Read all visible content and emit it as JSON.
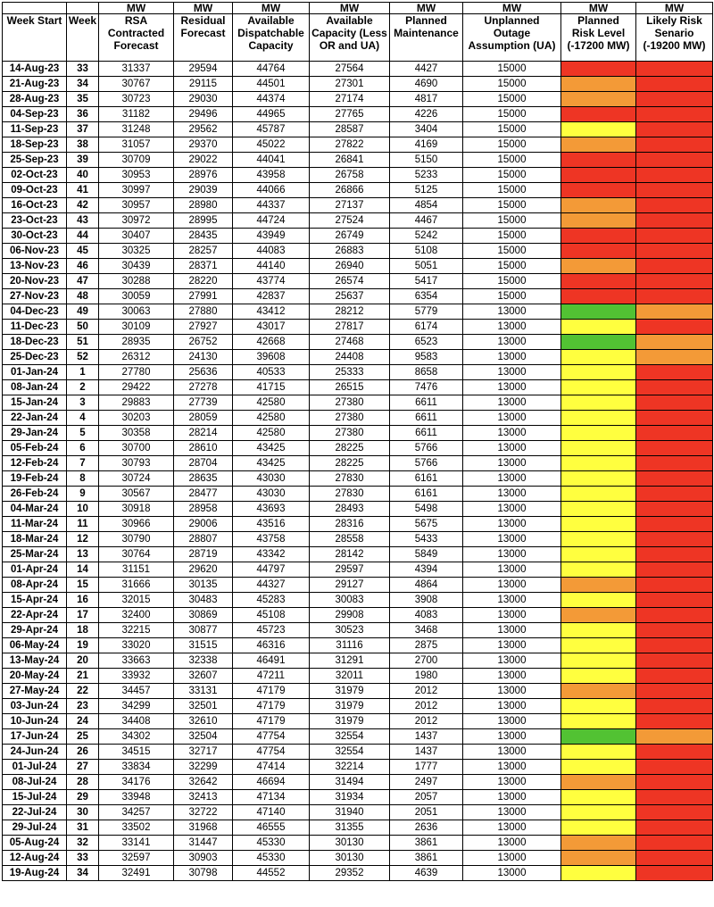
{
  "header": {
    "units": [
      "",
      "",
      "MW",
      "MW",
      "MW",
      "MW",
      "MW",
      "MW",
      "MW",
      "MW"
    ],
    "labels": [
      "Week Start",
      "Week",
      "RSA\nContracted\nForecast",
      "Residual\nForecast",
      "Available\nDispatchable\nCapacity",
      "Available\nCapacity (Less\nOR and UA)",
      "Planned\nMaintenance",
      "Unplanned\nOutage\nAssumption (UA)",
      "Planned\nRisk Level\n(-17200 MW)",
      "Likely Risk\nSenario\n(-19200 MW)"
    ]
  },
  "colors": {
    "red": "#ee3524",
    "orange": "#f39a37",
    "yellow": "#ffff3f",
    "green": "#52c233"
  },
  "rows": [
    {
      "week_start": "14-Aug-23",
      "week": "33",
      "rsa": "31337",
      "residual": "29594",
      "avail_disp": "44764",
      "avail_cap": "27564",
      "maint": "4427",
      "ua": "15000",
      "planned_risk": "red",
      "likely_risk": "red"
    },
    {
      "week_start": "21-Aug-23",
      "week": "34",
      "rsa": "30767",
      "residual": "29115",
      "avail_disp": "44501",
      "avail_cap": "27301",
      "maint": "4690",
      "ua": "15000",
      "planned_risk": "orange",
      "likely_risk": "red"
    },
    {
      "week_start": "28-Aug-23",
      "week": "35",
      "rsa": "30723",
      "residual": "29030",
      "avail_disp": "44374",
      "avail_cap": "27174",
      "maint": "4817",
      "ua": "15000",
      "planned_risk": "orange",
      "likely_risk": "red"
    },
    {
      "week_start": "04-Sep-23",
      "week": "36",
      "rsa": "31182",
      "residual": "29496",
      "avail_disp": "44965",
      "avail_cap": "27765",
      "maint": "4226",
      "ua": "15000",
      "planned_risk": "red",
      "likely_risk": "red"
    },
    {
      "week_start": "11-Sep-23",
      "week": "37",
      "rsa": "31248",
      "residual": "29562",
      "avail_disp": "45787",
      "avail_cap": "28587",
      "maint": "3404",
      "ua": "15000",
      "planned_risk": "yellow",
      "likely_risk": "red"
    },
    {
      "week_start": "18-Sep-23",
      "week": "38",
      "rsa": "31057",
      "residual": "29370",
      "avail_disp": "45022",
      "avail_cap": "27822",
      "maint": "4169",
      "ua": "15000",
      "planned_risk": "orange",
      "likely_risk": "red"
    },
    {
      "week_start": "25-Sep-23",
      "week": "39",
      "rsa": "30709",
      "residual": "29022",
      "avail_disp": "44041",
      "avail_cap": "26841",
      "maint": "5150",
      "ua": "15000",
      "planned_risk": "red",
      "likely_risk": "red"
    },
    {
      "week_start": "02-Oct-23",
      "week": "40",
      "rsa": "30953",
      "residual": "28976",
      "avail_disp": "43958",
      "avail_cap": "26758",
      "maint": "5233",
      "ua": "15000",
      "planned_risk": "red",
      "likely_risk": "red"
    },
    {
      "week_start": "09-Oct-23",
      "week": "41",
      "rsa": "30997",
      "residual": "29039",
      "avail_disp": "44066",
      "avail_cap": "26866",
      "maint": "5125",
      "ua": "15000",
      "planned_risk": "red",
      "likely_risk": "red"
    },
    {
      "week_start": "16-Oct-23",
      "week": "42",
      "rsa": "30957",
      "residual": "28980",
      "avail_disp": "44337",
      "avail_cap": "27137",
      "maint": "4854",
      "ua": "15000",
      "planned_risk": "orange",
      "likely_risk": "red"
    },
    {
      "week_start": "23-Oct-23",
      "week": "43",
      "rsa": "30972",
      "residual": "28995",
      "avail_disp": "44724",
      "avail_cap": "27524",
      "maint": "4467",
      "ua": "15000",
      "planned_risk": "orange",
      "likely_risk": "red"
    },
    {
      "week_start": "30-Oct-23",
      "week": "44",
      "rsa": "30407",
      "residual": "28435",
      "avail_disp": "43949",
      "avail_cap": "26749",
      "maint": "5242",
      "ua": "15000",
      "planned_risk": "red",
      "likely_risk": "red"
    },
    {
      "week_start": "06-Nov-23",
      "week": "45",
      "rsa": "30325",
      "residual": "28257",
      "avail_disp": "44083",
      "avail_cap": "26883",
      "maint": "5108",
      "ua": "15000",
      "planned_risk": "red",
      "likely_risk": "red"
    },
    {
      "week_start": "13-Nov-23",
      "week": "46",
      "rsa": "30439",
      "residual": "28371",
      "avail_disp": "44140",
      "avail_cap": "26940",
      "maint": "5051",
      "ua": "15000",
      "planned_risk": "orange",
      "likely_risk": "red"
    },
    {
      "week_start": "20-Nov-23",
      "week": "47",
      "rsa": "30288",
      "residual": "28220",
      "avail_disp": "43774",
      "avail_cap": "26574",
      "maint": "5417",
      "ua": "15000",
      "planned_risk": "red",
      "likely_risk": "red"
    },
    {
      "week_start": "27-Nov-23",
      "week": "48",
      "rsa": "30059",
      "residual": "27991",
      "avail_disp": "42837",
      "avail_cap": "25637",
      "maint": "6354",
      "ua": "15000",
      "planned_risk": "red",
      "likely_risk": "red"
    },
    {
      "week_start": "04-Dec-23",
      "week": "49",
      "rsa": "30063",
      "residual": "27880",
      "avail_disp": "43412",
      "avail_cap": "28212",
      "maint": "5779",
      "ua": "13000",
      "planned_risk": "green",
      "likely_risk": "orange"
    },
    {
      "week_start": "11-Dec-23",
      "week": "50",
      "rsa": "30109",
      "residual": "27927",
      "avail_disp": "43017",
      "avail_cap": "27817",
      "maint": "6174",
      "ua": "13000",
      "planned_risk": "yellow",
      "likely_risk": "red"
    },
    {
      "week_start": "18-Dec-23",
      "week": "51",
      "rsa": "28935",
      "residual": "26752",
      "avail_disp": "42668",
      "avail_cap": "27468",
      "maint": "6523",
      "ua": "13000",
      "planned_risk": "green",
      "likely_risk": "orange"
    },
    {
      "week_start": "25-Dec-23",
      "week": "52",
      "rsa": "26312",
      "residual": "24130",
      "avail_disp": "39608",
      "avail_cap": "24408",
      "maint": "9583",
      "ua": "13000",
      "planned_risk": "yellow",
      "likely_risk": "orange"
    },
    {
      "week_start": "01-Jan-24",
      "week": "1",
      "rsa": "27780",
      "residual": "25636",
      "avail_disp": "40533",
      "avail_cap": "25333",
      "maint": "8658",
      "ua": "13000",
      "planned_risk": "yellow",
      "likely_risk": "red"
    },
    {
      "week_start": "08-Jan-24",
      "week": "2",
      "rsa": "29422",
      "residual": "27278",
      "avail_disp": "41715",
      "avail_cap": "26515",
      "maint": "7476",
      "ua": "13000",
      "planned_risk": "yellow",
      "likely_risk": "red"
    },
    {
      "week_start": "15-Jan-24",
      "week": "3",
      "rsa": "29883",
      "residual": "27739",
      "avail_disp": "42580",
      "avail_cap": "27380",
      "maint": "6611",
      "ua": "13000",
      "planned_risk": "yellow",
      "likely_risk": "red"
    },
    {
      "week_start": "22-Jan-24",
      "week": "4",
      "rsa": "30203",
      "residual": "28059",
      "avail_disp": "42580",
      "avail_cap": "27380",
      "maint": "6611",
      "ua": "13000",
      "planned_risk": "yellow",
      "likely_risk": "red"
    },
    {
      "week_start": "29-Jan-24",
      "week": "5",
      "rsa": "30358",
      "residual": "28214",
      "avail_disp": "42580",
      "avail_cap": "27380",
      "maint": "6611",
      "ua": "13000",
      "planned_risk": "yellow",
      "likely_risk": "red"
    },
    {
      "week_start": "05-Feb-24",
      "week": "6",
      "rsa": "30700",
      "residual": "28610",
      "avail_disp": "43425",
      "avail_cap": "28225",
      "maint": "5766",
      "ua": "13000",
      "planned_risk": "yellow",
      "likely_risk": "red"
    },
    {
      "week_start": "12-Feb-24",
      "week": "7",
      "rsa": "30793",
      "residual": "28704",
      "avail_disp": "43425",
      "avail_cap": "28225",
      "maint": "5766",
      "ua": "13000",
      "planned_risk": "yellow",
      "likely_risk": "red"
    },
    {
      "week_start": "19-Feb-24",
      "week": "8",
      "rsa": "30724",
      "residual": "28635",
      "avail_disp": "43030",
      "avail_cap": "27830",
      "maint": "6161",
      "ua": "13000",
      "planned_risk": "yellow",
      "likely_risk": "red"
    },
    {
      "week_start": "26-Feb-24",
      "week": "9",
      "rsa": "30567",
      "residual": "28477",
      "avail_disp": "43030",
      "avail_cap": "27830",
      "maint": "6161",
      "ua": "13000",
      "planned_risk": "yellow",
      "likely_risk": "red"
    },
    {
      "week_start": "04-Mar-24",
      "week": "10",
      "rsa": "30918",
      "residual": "28958",
      "avail_disp": "43693",
      "avail_cap": "28493",
      "maint": "5498",
      "ua": "13000",
      "planned_risk": "yellow",
      "likely_risk": "red"
    },
    {
      "week_start": "11-Mar-24",
      "week": "11",
      "rsa": "30966",
      "residual": "29006",
      "avail_disp": "43516",
      "avail_cap": "28316",
      "maint": "5675",
      "ua": "13000",
      "planned_risk": "yellow",
      "likely_risk": "red"
    },
    {
      "week_start": "18-Mar-24",
      "week": "12",
      "rsa": "30790",
      "residual": "28807",
      "avail_disp": "43758",
      "avail_cap": "28558",
      "maint": "5433",
      "ua": "13000",
      "planned_risk": "yellow",
      "likely_risk": "red"
    },
    {
      "week_start": "25-Mar-24",
      "week": "13",
      "rsa": "30764",
      "residual": "28719",
      "avail_disp": "43342",
      "avail_cap": "28142",
      "maint": "5849",
      "ua": "13000",
      "planned_risk": "yellow",
      "likely_risk": "red"
    },
    {
      "week_start": "01-Apr-24",
      "week": "14",
      "rsa": "31151",
      "residual": "29620",
      "avail_disp": "44797",
      "avail_cap": "29597",
      "maint": "4394",
      "ua": "13000",
      "planned_risk": "yellow",
      "likely_risk": "red"
    },
    {
      "week_start": "08-Apr-24",
      "week": "15",
      "rsa": "31666",
      "residual": "30135",
      "avail_disp": "44327",
      "avail_cap": "29127",
      "maint": "4864",
      "ua": "13000",
      "planned_risk": "orange",
      "likely_risk": "red"
    },
    {
      "week_start": "15-Apr-24",
      "week": "16",
      "rsa": "32015",
      "residual": "30483",
      "avail_disp": "45283",
      "avail_cap": "30083",
      "maint": "3908",
      "ua": "13000",
      "planned_risk": "yellow",
      "likely_risk": "red"
    },
    {
      "week_start": "22-Apr-24",
      "week": "17",
      "rsa": "32400",
      "residual": "30869",
      "avail_disp": "45108",
      "avail_cap": "29908",
      "maint": "4083",
      "ua": "13000",
      "planned_risk": "orange",
      "likely_risk": "red"
    },
    {
      "week_start": "29-Apr-24",
      "week": "18",
      "rsa": "32215",
      "residual": "30877",
      "avail_disp": "45723",
      "avail_cap": "30523",
      "maint": "3468",
      "ua": "13000",
      "planned_risk": "yellow",
      "likely_risk": "red"
    },
    {
      "week_start": "06-May-24",
      "week": "19",
      "rsa": "33020",
      "residual": "31515",
      "avail_disp": "46316",
      "avail_cap": "31116",
      "maint": "2875",
      "ua": "13000",
      "planned_risk": "yellow",
      "likely_risk": "red"
    },
    {
      "week_start": "13-May-24",
      "week": "20",
      "rsa": "33663",
      "residual": "32338",
      "avail_disp": "46491",
      "avail_cap": "31291",
      "maint": "2700",
      "ua": "13000",
      "planned_risk": "yellow",
      "likely_risk": "red"
    },
    {
      "week_start": "20-May-24",
      "week": "21",
      "rsa": "33932",
      "residual": "32607",
      "avail_disp": "47211",
      "avail_cap": "32011",
      "maint": "1980",
      "ua": "13000",
      "planned_risk": "yellow",
      "likely_risk": "red"
    },
    {
      "week_start": "27-May-24",
      "week": "22",
      "rsa": "34457",
      "residual": "33131",
      "avail_disp": "47179",
      "avail_cap": "31979",
      "maint": "2012",
      "ua": "13000",
      "planned_risk": "orange",
      "likely_risk": "red"
    },
    {
      "week_start": "03-Jun-24",
      "week": "23",
      "rsa": "34299",
      "residual": "32501",
      "avail_disp": "47179",
      "avail_cap": "31979",
      "maint": "2012",
      "ua": "13000",
      "planned_risk": "yellow",
      "likely_risk": "red"
    },
    {
      "week_start": "10-Jun-24",
      "week": "24",
      "rsa": "34408",
      "residual": "32610",
      "avail_disp": "47179",
      "avail_cap": "31979",
      "maint": "2012",
      "ua": "13000",
      "planned_risk": "yellow",
      "likely_risk": "red"
    },
    {
      "week_start": "17-Jun-24",
      "week": "25",
      "rsa": "34302",
      "residual": "32504",
      "avail_disp": "47754",
      "avail_cap": "32554",
      "maint": "1437",
      "ua": "13000",
      "planned_risk": "green",
      "likely_risk": "orange"
    },
    {
      "week_start": "24-Jun-24",
      "week": "26",
      "rsa": "34515",
      "residual": "32717",
      "avail_disp": "47754",
      "avail_cap": "32554",
      "maint": "1437",
      "ua": "13000",
      "planned_risk": "yellow",
      "likely_risk": "red"
    },
    {
      "week_start": "01-Jul-24",
      "week": "27",
      "rsa": "33834",
      "residual": "32299",
      "avail_disp": "47414",
      "avail_cap": "32214",
      "maint": "1777",
      "ua": "13000",
      "planned_risk": "yellow",
      "likely_risk": "red"
    },
    {
      "week_start": "08-Jul-24",
      "week": "28",
      "rsa": "34176",
      "residual": "32642",
      "avail_disp": "46694",
      "avail_cap": "31494",
      "maint": "2497",
      "ua": "13000",
      "planned_risk": "orange",
      "likely_risk": "red"
    },
    {
      "week_start": "15-Jul-24",
      "week": "29",
      "rsa": "33948",
      "residual": "32413",
      "avail_disp": "47134",
      "avail_cap": "31934",
      "maint": "2057",
      "ua": "13000",
      "planned_risk": "yellow",
      "likely_risk": "red"
    },
    {
      "week_start": "22-Jul-24",
      "week": "30",
      "rsa": "34257",
      "residual": "32722",
      "avail_disp": "47140",
      "avail_cap": "31940",
      "maint": "2051",
      "ua": "13000",
      "planned_risk": "yellow",
      "likely_risk": "red"
    },
    {
      "week_start": "29-Jul-24",
      "week": "31",
      "rsa": "33502",
      "residual": "31968",
      "avail_disp": "46555",
      "avail_cap": "31355",
      "maint": "2636",
      "ua": "13000",
      "planned_risk": "yellow",
      "likely_risk": "red"
    },
    {
      "week_start": "05-Aug-24",
      "week": "32",
      "rsa": "33141",
      "residual": "31447",
      "avail_disp": "45330",
      "avail_cap": "30130",
      "maint": "3861",
      "ua": "13000",
      "planned_risk": "orange",
      "likely_risk": "red"
    },
    {
      "week_start": "12-Aug-24",
      "week": "33",
      "rsa": "32597",
      "residual": "30903",
      "avail_disp": "45330",
      "avail_cap": "30130",
      "maint": "3861",
      "ua": "13000",
      "planned_risk": "orange",
      "likely_risk": "red"
    },
    {
      "week_start": "19-Aug-24",
      "week": "34",
      "rsa": "32491",
      "residual": "30798",
      "avail_disp": "44552",
      "avail_cap": "29352",
      "maint": "4639",
      "ua": "13000",
      "planned_risk": "yellow",
      "likely_risk": "red"
    }
  ]
}
